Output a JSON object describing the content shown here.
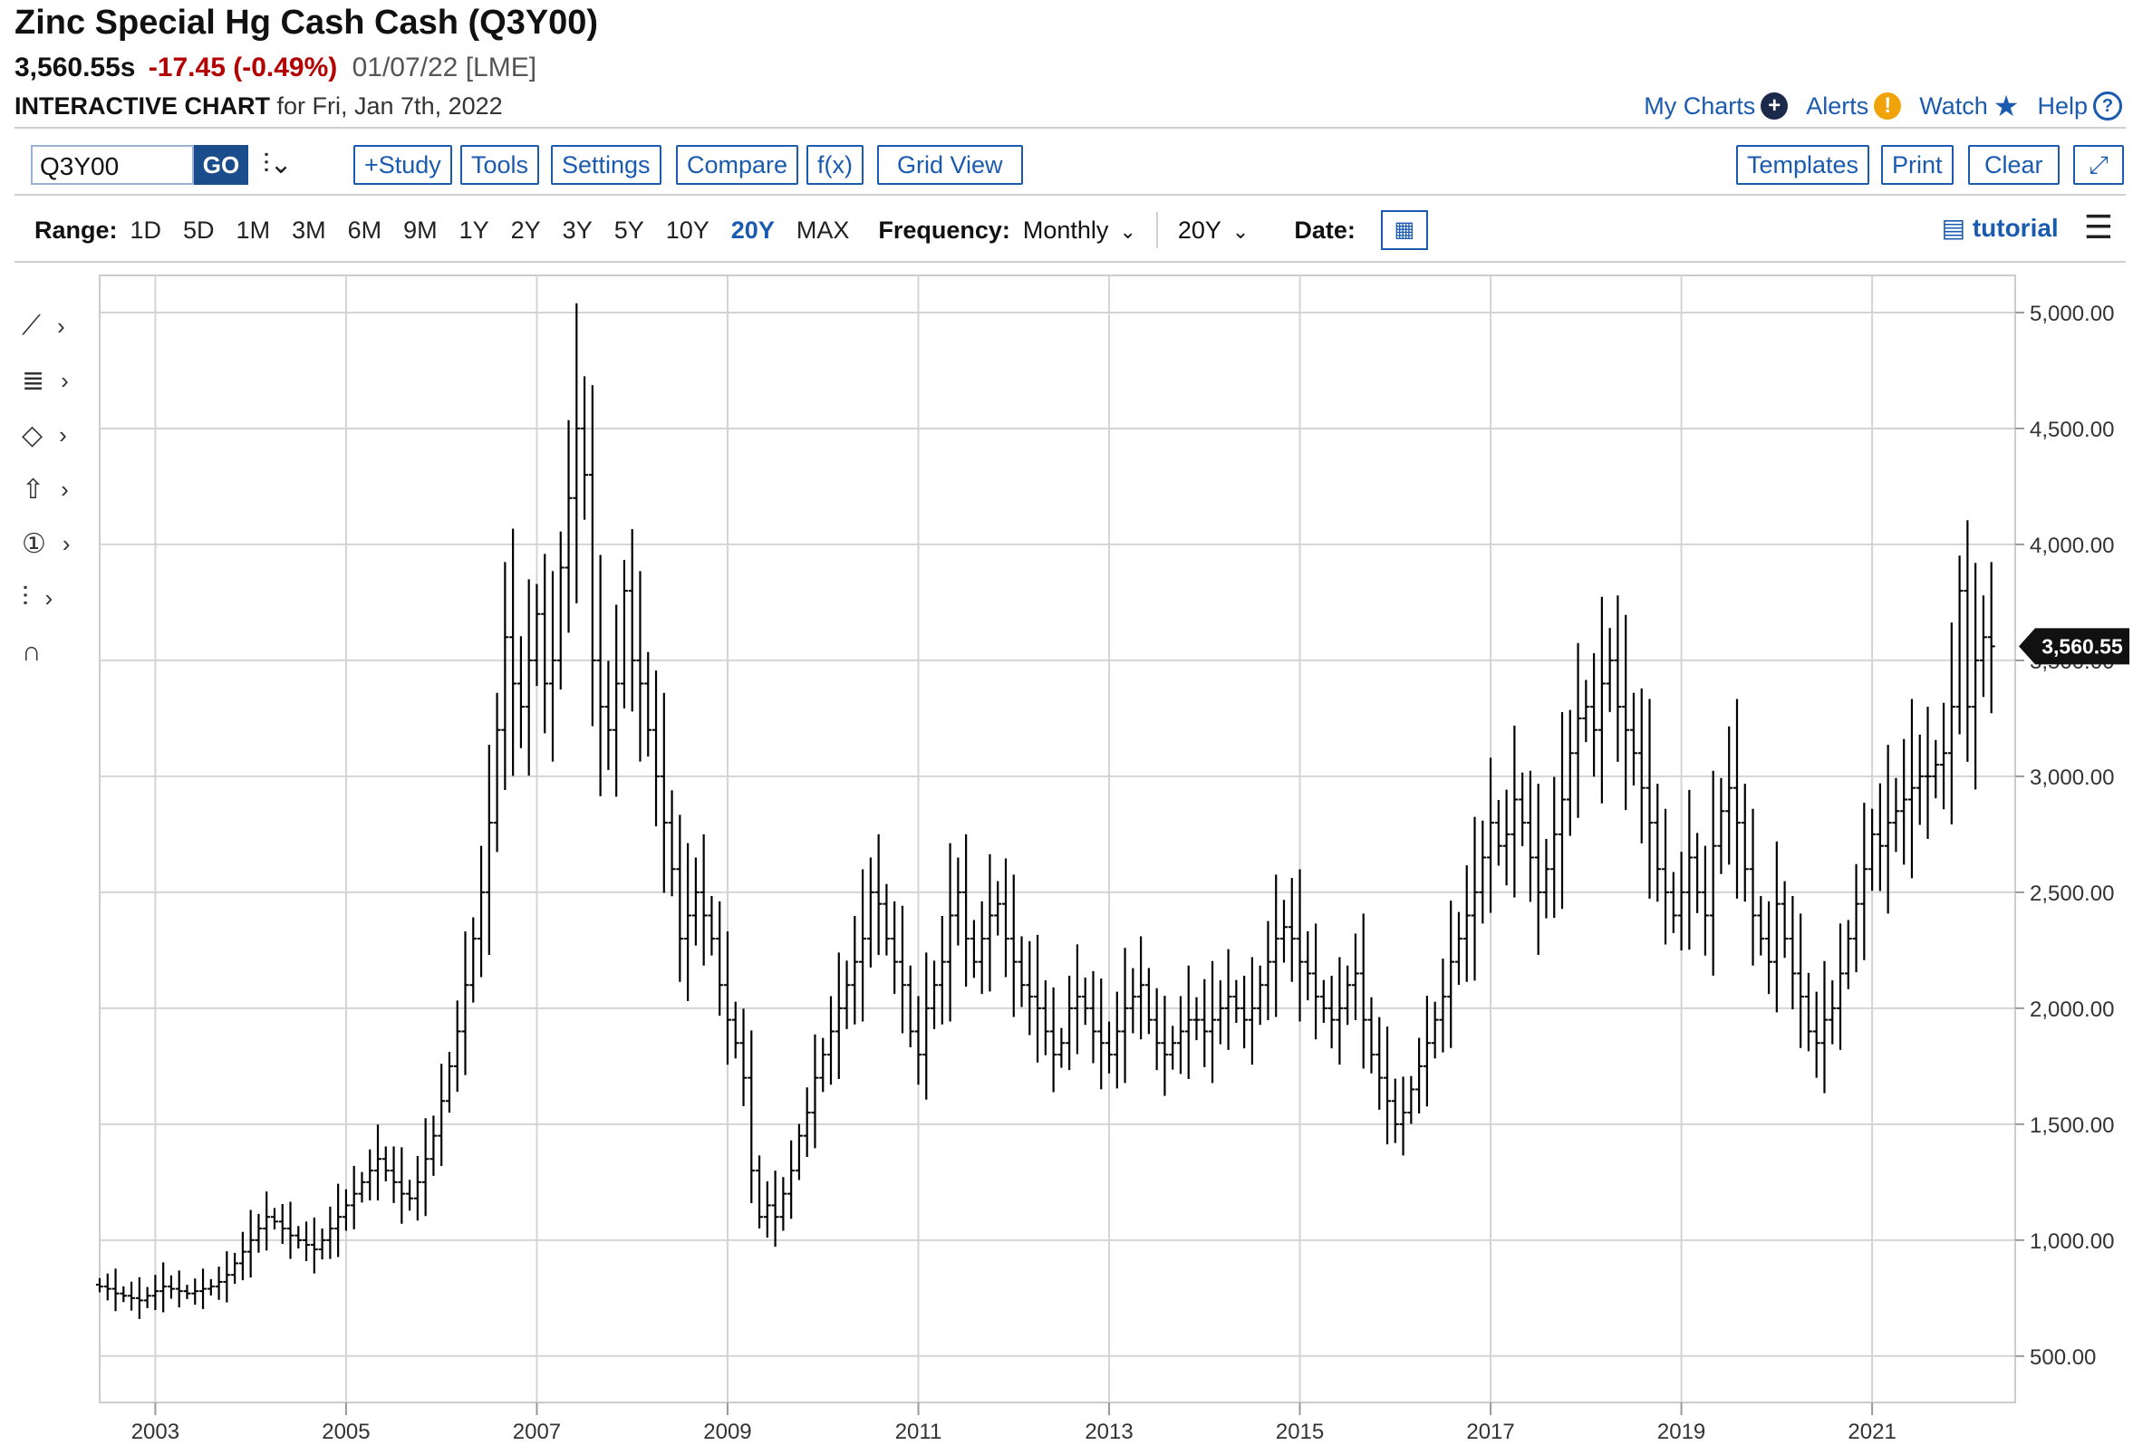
{
  "header": {
    "title": "Zinc Special Hg Cash Cash (Q3Y00)",
    "last": "3,560.55s",
    "change": "-17.45 (-0.49%)",
    "date": "01/07/22 [LME]",
    "subtitle_bold": "INTERACTIVE CHART",
    "subtitle_rest": "for Fri, Jan 7th, 2022"
  },
  "toplinks": {
    "my_charts": "My Charts",
    "alerts": "Alerts",
    "watch": "Watch",
    "help": "Help"
  },
  "toolbar": {
    "symbol": "Q3Y00",
    "go": "GO",
    "study": "+Study",
    "tools": "Tools",
    "settings": "Settings",
    "compare": "Compare",
    "fx": "f(x)",
    "grid_view": "Grid View",
    "templates": "Templates",
    "print": "Print",
    "clear": "Clear"
  },
  "rangebar": {
    "range_label": "Range:",
    "ranges": [
      "1D",
      "5D",
      "1M",
      "3M",
      "6M",
      "9M",
      "1Y",
      "2Y",
      "3Y",
      "5Y",
      "10Y",
      "20Y",
      "MAX"
    ],
    "active_range": "20Y",
    "frequency_label": "Frequency:",
    "frequency": "Monthly",
    "period": "20Y",
    "date_label": "Date:",
    "tutorial": "tutorial"
  },
  "colors": {
    "accent": "#1a5bb0",
    "negative": "#b40000",
    "bars": "#000000",
    "grid": "#d4d4d4"
  },
  "chart_data": {
    "type": "ohlc",
    "frequency": "monthly",
    "x_start": "2002-06",
    "x_ticks": [
      "2003",
      "2005",
      "2007",
      "2009",
      "2011",
      "2013",
      "2015",
      "2017",
      "2019",
      "2021"
    ],
    "y_ticks": [
      "500.00",
      "1,000.00",
      "1,500.00",
      "2,000.00",
      "2,500.00",
      "3,000.00",
      "3,500.00",
      "4,000.00",
      "4,500.00",
      "5,000.00"
    ],
    "ylim": [
      300,
      5160
    ],
    "last_value": 3560.55,
    "last_label": "3,560.55",
    "grid": true,
    "closes": [
      800,
      790,
      770,
      760,
      750,
      740,
      760,
      780,
      800,
      790,
      780,
      770,
      780,
      790,
      800,
      820,
      850,
      900,
      950,
      1000,
      1050,
      1100,
      1080,
      1050,
      1020,
      1000,
      980,
      960,
      1000,
      1050,
      1100,
      1150,
      1200,
      1250,
      1300,
      1350,
      1300,
      1250,
      1200,
      1180,
      1250,
      1350,
      1450,
      1600,
      1750,
      1900,
      2100,
      2300,
      2500,
      2800,
      3200,
      3600,
      3400,
      3300,
      3500,
      3700,
      3400,
      3500,
      3900,
      4200,
      4500,
      4300,
      3500,
      3300,
      3200,
      3400,
      3800,
      3500,
      3400,
      3200,
      3000,
      2800,
      2600,
      2300,
      2400,
      2500,
      2400,
      2300,
      2100,
      1950,
      1850,
      1700,
      1300,
      1100,
      1150,
      1100,
      1200,
      1300,
      1450,
      1550,
      1700,
      1800,
      1900,
      2000,
      2100,
      2200,
      2300,
      2500,
      2450,
      2300,
      2200,
      2100,
      1900,
      1800,
      2000,
      2100,
      2200,
      2400,
      2500,
      2300,
      2200,
      2300,
      2400,
      2450,
      2300,
      2200,
      2100,
      2050,
      2000,
      1900,
      1800,
      1850,
      2000,
      2050,
      2000,
      1900,
      1850,
      1800,
      1900,
      2000,
      2050,
      2100,
      1950,
      1850,
      1800,
      1850,
      1900,
      1950,
      1950,
      1900,
      1950,
      2000,
      2050,
      2000,
      1950,
      2000,
      2100,
      2200,
      2300,
      2350,
      2300,
      2200,
      2150,
      2050,
      2000,
      1950,
      2000,
      2100,
      2150,
      1950,
      1800,
      1700,
      1600,
      1500,
      1550,
      1650,
      1750,
      1850,
      1950,
      2050,
      2200,
      2300,
      2400,
      2500,
      2650,
      2800,
      2700,
      2750,
      2900,
      2800,
      2650,
      2500,
      2600,
      2750,
      2900,
      3100,
      3250,
      3300,
      3200,
      3400,
      3500,
      3300,
      3200,
      3100,
      2950,
      2800,
      2600,
      2500,
      2400,
      2500,
      2650,
      2500,
      2400,
      2700,
      2850,
      2950,
      2800,
      2600,
      2400,
      2300,
      2200,
      2450,
      2300,
      2150,
      2050,
      1900,
      1850,
      1950,
      2000,
      2150,
      2300,
      2450,
      2600,
      2750,
      2700,
      2800,
      2850,
      2900,
      2950,
      3000,
      3000,
      3050,
      3100,
      3300,
      3800,
      3300,
      3500,
      3600,
      3560.55
    ]
  }
}
